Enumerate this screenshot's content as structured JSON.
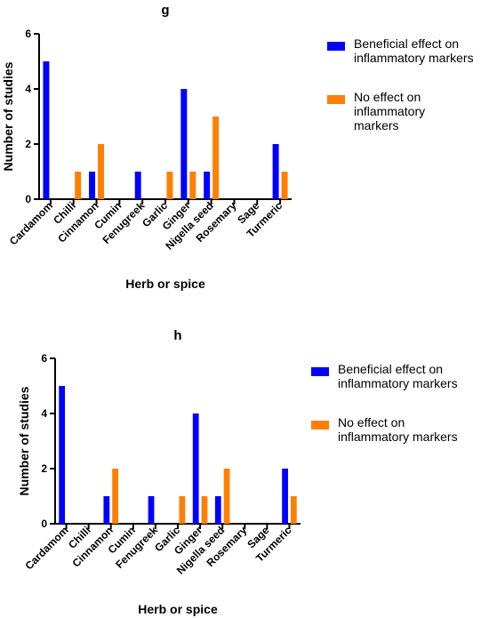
{
  "chart_data": [
    {
      "type": "bar",
      "title": "g",
      "xlabel": "Herb or spice",
      "ylabel": "Number of studies",
      "ylim": [
        0,
        6
      ],
      "yticks": [
        0,
        2,
        4,
        6
      ],
      "grid": false,
      "legend_position": "right",
      "categories": [
        "Cardamom",
        "Chilli",
        "Cinnamon",
        "Cumin",
        "Fenugreek",
        "Garlic",
        "Ginger",
        "Nigella seed",
        "Rosemary",
        "Sage",
        "Turmeric"
      ],
      "series": [
        {
          "name": "Beneficial effect on inflammatory markers",
          "legend_lines": [
            "Beneficial effect on",
            "inflammatory markers"
          ],
          "color": "#0000ff",
          "values": [
            5,
            0,
            1,
            0,
            1,
            0,
            4,
            1,
            0,
            0,
            2
          ]
        },
        {
          "name": "No effect on inflammatory markers",
          "legend_lines": [
            "No effect on",
            "inflammatory",
            "markers"
          ],
          "color": "#ff8000",
          "values": [
            0,
            1,
            2,
            0,
            0,
            1,
            1,
            3,
            0,
            0,
            1
          ]
        }
      ]
    },
    {
      "type": "bar",
      "title": "h",
      "xlabel": "Herb or spice",
      "ylabel": "Number of studies",
      "ylim": [
        0,
        6
      ],
      "yticks": [
        0,
        2,
        4,
        6
      ],
      "grid": false,
      "legend_position": "right",
      "categories": [
        "Cardamom",
        "Chilli",
        "Cinnamon",
        "Cumin",
        "Fenugreek",
        "Garlic",
        "Ginger",
        "Nigella seed",
        "Rosemary",
        "Sage",
        "Turmeric"
      ],
      "series": [
        {
          "name": "Beneficial effect on inflammatory markers",
          "legend_lines": [
            "Beneficial effect on",
            "inflammatory markers"
          ],
          "color": "#0000ff",
          "values": [
            5,
            0,
            1,
            0,
            1,
            0,
            4,
            1,
            0,
            0,
            2
          ]
        },
        {
          "name": "No effect on inflammatory markers",
          "legend_lines": [
            "No effect on",
            "inflammatory markers"
          ],
          "color": "#ff8000",
          "values": [
            0,
            0,
            2,
            0,
            0,
            1,
            1,
            2,
            0,
            0,
            1
          ]
        }
      ]
    }
  ]
}
